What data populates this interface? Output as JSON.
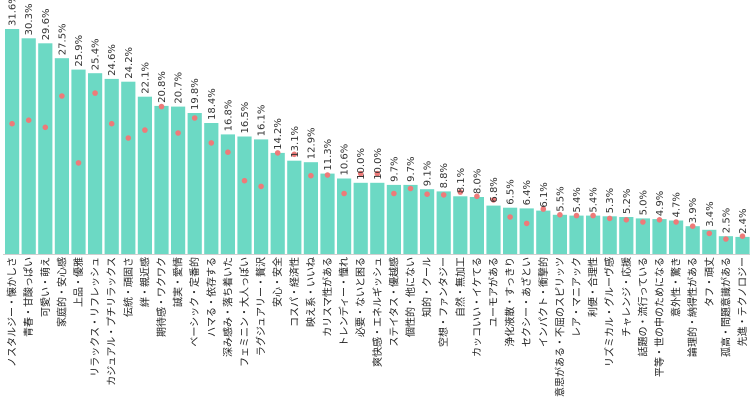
{
  "chart_data": {
    "type": "bar",
    "title": "",
    "xlabel": "",
    "ylabel": "",
    "ylim": [
      0,
      33
    ],
    "colors": {
      "bar": "#6cd9c4",
      "dot": "#ee7a79"
    },
    "categories": [
      "ノスタルジー・懐かしさ",
      "青春・甘酸っぱい",
      "可愛い・萌え",
      "家庭的・安心感",
      "上品・優雅",
      "リラックス・リフレッシュ",
      "カジュアル・プチリラックス",
      "伝統・頑固さ",
      "絆・親近感",
      "期待感・ワクワク",
      "誠実・愛情",
      "ベーシック・定番的",
      "ハマる・依存する",
      "深み感み・落ち着いた",
      "フェミニン・大人っぽい",
      "ラグジュアリー・贅沢",
      "安心・安全",
      "コスパ・経済性",
      "映え系・いいね",
      "カリスマ性がある",
      "トレンディー・憧れ",
      "必要・ないと困る",
      "爽快感・エネルギッシュ",
      "ステイタス・優越感",
      "個性的・他にない",
      "知的・クール",
      "空想・ファンタジー",
      "自然・無加工",
      "カッコいい・イケてる",
      "ユーモアがある",
      "浄化液散・すっきり",
      "セクシー・あざとい",
      "インパクト・衝撃的",
      "意思がある・不屈のスピリッツ",
      "レア・マニアック",
      "利便・合理性",
      "リズミカル・グルーヴ感",
      "チャレンジ・応援",
      "話題の・流行っている",
      "平等・世の中のためになる",
      "意外性・驚き",
      "論理的・納得性がある",
      "タフ・頑丈",
      "孤高・問題意識がある",
      "先進・テクノロジー"
    ],
    "series": [
      {
        "name": "bar",
        "values": [
          31.6,
          30.3,
          29.6,
          27.5,
          25.9,
          25.4,
          24.6,
          24.2,
          22.1,
          20.8,
          20.7,
          19.8,
          18.4,
          16.8,
          16.5,
          16.1,
          14.2,
          13.1,
          12.9,
          11.3,
          10.6,
          10.0,
          10.0,
          9.7,
          9.7,
          9.1,
          8.8,
          8.1,
          8.0,
          6.8,
          6.5,
          6.4,
          6.1,
          5.5,
          5.4,
          5.4,
          5.3,
          5.2,
          5.0,
          4.9,
          4.7,
          3.9,
          3.4,
          2.5,
          2.4
        ],
        "labels": [
          "31.6%",
          "30.3%",
          "29.6%",
          "27.5%",
          "25.9%",
          "25.4%",
          "24.6%",
          "24.2%",
          "22.1%",
          "20.8%",
          "20.7%",
          "19.8%",
          "18.4%",
          "16.8%",
          "16.5%",
          "16.1%",
          "14.2%",
          "13.1%",
          "12.9%",
          "11.3%",
          "10.6%",
          "10.0%",
          "10.0%",
          "9.7%",
          "9.7%",
          "9.1%",
          "8.8%",
          "8.1%",
          "8.0%",
          "6.8%",
          "6.5%",
          "6.4%",
          "6.1%",
          "5.5%",
          "5.4%",
          "5.4%",
          "5.3%",
          "5.2%",
          "5.0%",
          "4.9%",
          "4.7%",
          "3.9%",
          "3.4%",
          "2.5%",
          "2.4%"
        ]
      },
      {
        "name": "dot",
        "values": [
          18.3,
          18.8,
          17.8,
          22.2,
          12.8,
          22.6,
          18.3,
          16.3,
          17.4,
          20.7,
          17.0,
          19.1,
          15.6,
          14.3,
          10.3,
          9.5,
          14.2,
          14.0,
          11.0,
          11.1,
          8.5,
          11.3,
          11.3,
          8.5,
          9.2,
          8.4,
          8.3,
          8.7,
          8.1,
          7.6,
          5.2,
          4.3,
          6.3,
          5.5,
          5.4,
          5.4,
          5.0,
          4.8,
          4.5,
          4.8,
          4.5,
          3.9,
          2.9,
          2.1,
          2.5
        ]
      }
    ]
  }
}
